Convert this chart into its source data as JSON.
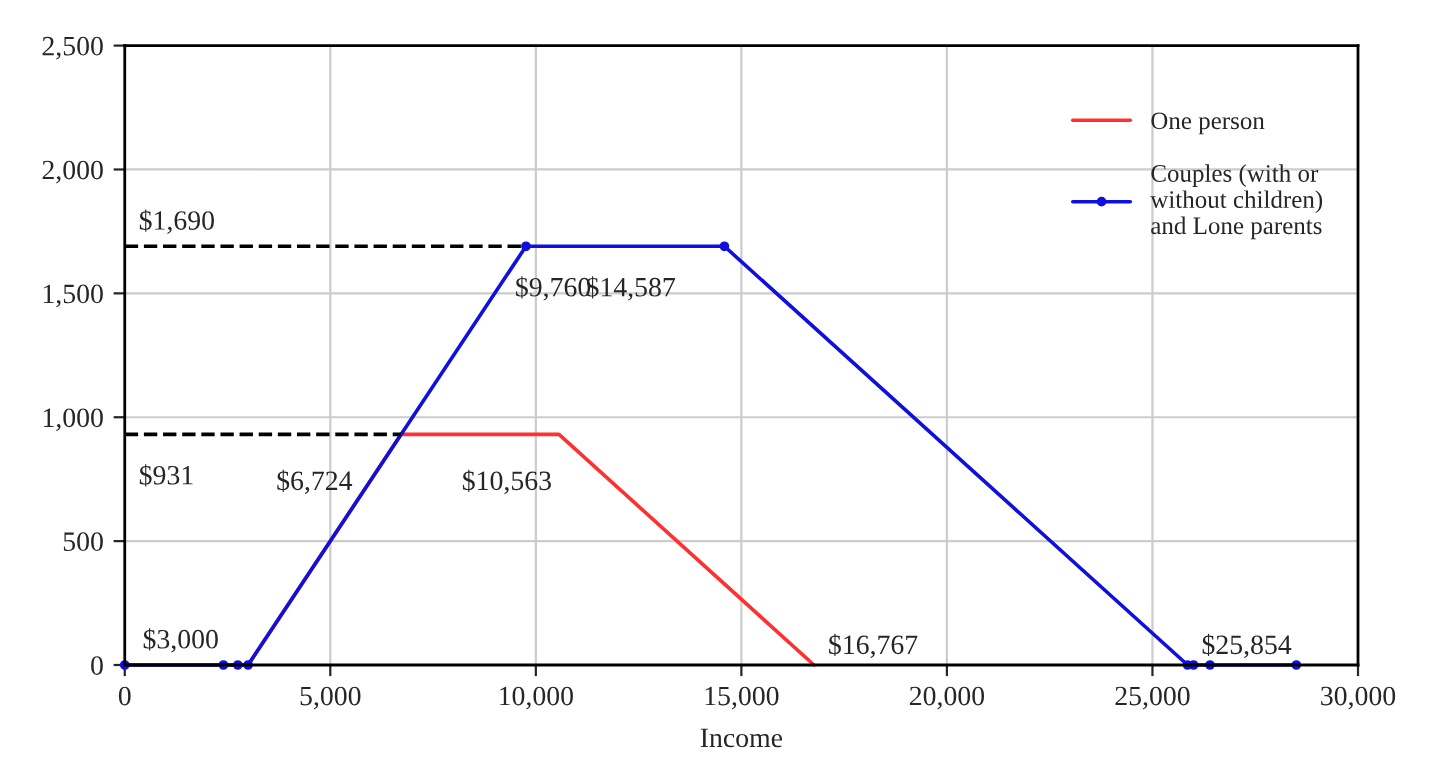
{
  "chart_data": {
    "type": "line",
    "xlabel": "Income",
    "series": [
      {
        "name": "One person",
        "color": "#ff3030",
        "marker": "none",
        "x": [
          0,
          3000,
          6724,
          10563,
          16767
        ],
        "values": [
          0,
          0,
          931,
          931,
          0
        ]
      },
      {
        "name": "Couples (with or\nwithout children)\nand Lone parents",
        "color": "#1010dd",
        "marker": "circle",
        "x": [
          0,
          2400,
          2750,
          3000,
          9760,
          14587,
          25854,
          26000,
          26400,
          28500
        ],
        "values": [
          0,
          0,
          0,
          0,
          1690,
          1690,
          0,
          0,
          0,
          0
        ]
      },
      {
        "color": "#000000",
        "line_style": "dashed",
        "marker": "none",
        "x": [
          0,
          9760
        ],
        "values": [
          1690,
          1690
        ]
      },
      {
        "color": "#000000",
        "line_style": "dashed",
        "marker": "none",
        "x": [
          0,
          6724
        ],
        "values": [
          931,
          931
        ]
      }
    ],
    "xlim": [
      0,
      30000
    ],
    "xticks": [
      {
        "value": 0,
        "label": "0"
      },
      {
        "value": 5000,
        "label": "5,000"
      },
      {
        "value": 10000,
        "label": "10,000"
      },
      {
        "value": 15000,
        "label": "15,000"
      },
      {
        "value": 20000,
        "label": "20,000"
      },
      {
        "value": 25000,
        "label": "25,000"
      },
      {
        "value": 30000,
        "label": "30,000"
      }
    ],
    "ylim": [
      0,
      2500
    ],
    "yticks": [
      {
        "value": 0,
        "label": "0"
      },
      {
        "value": 500,
        "label": "500"
      },
      {
        "value": 1000,
        "label": "1,000"
      },
      {
        "value": 1500,
        "label": "1,500"
      },
      {
        "value": 2000,
        "label": "2,000"
      },
      {
        "value": 2500,
        "label": "2,500"
      }
    ],
    "grid": true,
    "legend": "top right",
    "annotations": [
      {
        "text": "$1,690",
        "x": 0,
        "y": 1690
      },
      {
        "text": "$931",
        "x": 0,
        "y": 931
      },
      {
        "text": "$3,000",
        "x": 3000,
        "y": 0
      },
      {
        "text": "$6,724",
        "x": 6724,
        "y": 931
      },
      {
        "text": "$9,760",
        "x": 9760,
        "y": 1690
      },
      {
        "text": "$10,563",
        "x": 10563,
        "y": 931
      },
      {
        "text": "$14,587",
        "x": 14587,
        "y": 1690
      },
      {
        "text": "$16,767",
        "x": 16767,
        "y": 0
      },
      {
        "text": "$25,854",
        "x": 25854,
        "y": 0
      }
    ]
  }
}
